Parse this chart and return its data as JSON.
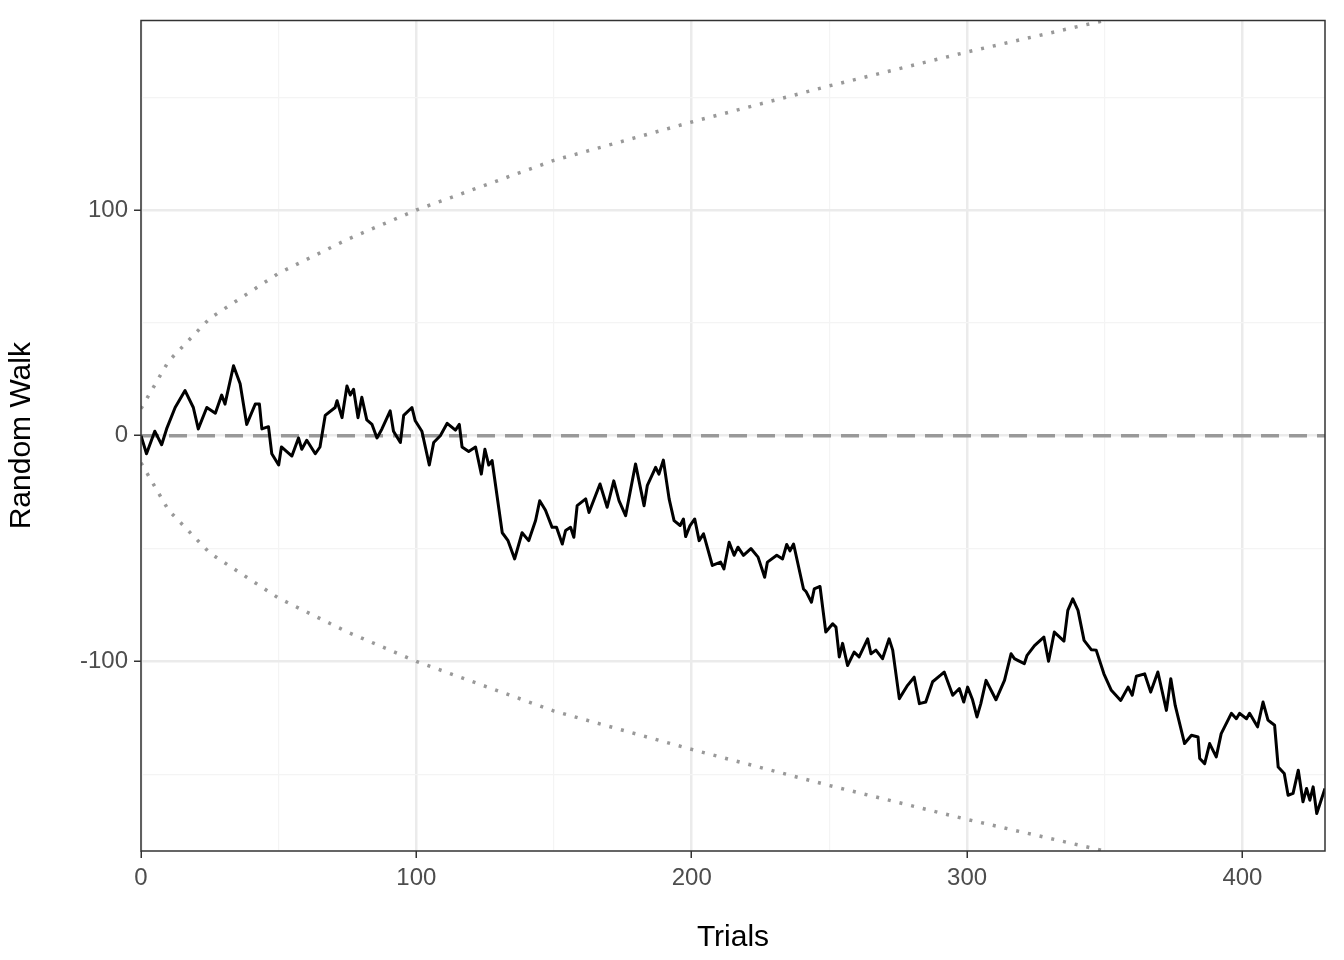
{
  "chart_data": {
    "type": "line",
    "xlabel": "Trials",
    "ylabel": "Random Walk",
    "xlim": [
      0,
      430
    ],
    "ylim": [
      -184,
      184
    ],
    "xticks": [
      0,
      {
        "value": 50,
        "label": null
      },
      100,
      {
        "value": 150,
        "label": null
      },
      200,
      {
        "value": 250,
        "label": null
      },
      300,
      {
        "value": 350,
        "label": null
      },
      400
    ],
    "yticks": [
      {
        "value": -150,
        "label": null
      },
      -100,
      {
        "value": -50,
        "label": null
      },
      0,
      {
        "value": 50,
        "label": null
      },
      100,
      {
        "value": 150,
        "label": null
      }
    ],
    "grid": true,
    "marker": "none",
    "ref_lines": [
      {
        "axis": "y",
        "value": 0,
        "color": "#999999",
        "line_style": "dashed"
      }
    ],
    "series": [
      {
        "type": "line",
        "color": "#000000",
        "line_style": "solid",
        "x": [
          0,
          2,
          5,
          7.5,
          9.3,
          12.4,
          16,
          19,
          20.8,
          23.9,
          27,
          29.3,
          30.5,
          33.6,
          36,
          38.4,
          41.5,
          43,
          43.9,
          46.3,
          47.5,
          50,
          51,
          54.8,
          57.2,
          58.4,
          60.2,
          63.3,
          65,
          66.9,
          70.5,
          71.2,
          73,
          74.8,
          76,
          77.2,
          78.8,
          80.2,
          82,
          83.9,
          85.7,
          87.5,
          90.5,
          91.7,
          94.2,
          95.4,
          98.4,
          99.6,
          102,
          104.7,
          106.3,
          108.7,
          111.2,
          114.2,
          115.6,
          116.6,
          119,
          121.5,
          123.6,
          124.9,
          126.3,
          127.5,
          131.2,
          133.3,
          135.7,
          138.4,
          140.8,
          143.3,
          144.8,
          146.9,
          149.3,
          150.9,
          153,
          154.2,
          156,
          157.2,
          158.4,
          161.5,
          162.7,
          166.7,
          169.3,
          171.7,
          173.6,
          176,
          179.6,
          182.7,
          183.9,
          186.9,
          188.1,
          189.7,
          191.8,
          193.6,
          195.8,
          197,
          197.8,
          199.4,
          201.1,
          202.7,
          204.3,
          207.5,
          210.5,
          211.7,
          213.6,
          215.4,
          216.8,
          218.8,
          221.5,
          224.1,
          226.5,
          227.5,
          230.9,
          233,
          234.5,
          235.7,
          237,
          240.6,
          241.5,
          243.5,
          244.5,
          246.6,
          248.7,
          251.2,
          252.4,
          253.6,
          254.8,
          256.6,
          259,
          260.8,
          263.9,
          265.1,
          266.9,
          269.3,
          271.7,
          273,
          275.4,
          278.4,
          280.8,
          282.7,
          285,
          287.5,
          290.5,
          291.7,
          294.8,
          297.2,
          298.8,
          300.2,
          302,
          303.6,
          305,
          306.9,
          310.5,
          313.6,
          316,
          317.2,
          320.8,
          321.8,
          324.5,
          327.9,
          329.6,
          331.7,
          335.2,
          336.6,
          338.4,
          340.3,
          342.5,
          345.1,
          346.9,
          349.7,
          352.4,
          355.8,
          358.5,
          360,
          361.5,
          364.5,
          366.7,
          369.3,
          372.4,
          374,
          375.6,
          379,
          381.5,
          383.9,
          384.5,
          386.3,
          388.1,
          390.5,
          392.3,
          396,
          397.8,
          399,
          401.5,
          402.6,
          405.5,
          407.5,
          409.3,
          411.7,
          413,
          415.2,
          416.6,
          418.4,
          420.3,
          422,
          423.3,
          424.5,
          425.7,
          427,
          430
        ],
        "values": [
          0,
          -8,
          2,
          -4,
          3,
          12.5,
          20,
          12.5,
          3,
          12.5,
          10,
          18,
          14,
          31,
          23,
          5,
          14,
          14,
          3,
          4,
          -8,
          -13,
          -5,
          -9,
          -1,
          -6,
          -2,
          -8,
          -5,
          9,
          12.5,
          15.5,
          8,
          22,
          18,
          20.6,
          8,
          17,
          7,
          5,
          -1,
          3,
          11,
          2,
          -3,
          9,
          12.5,
          6.6,
          2,
          -13,
          -3,
          0,
          5.5,
          2.5,
          5,
          -5,
          -7,
          -5,
          -17,
          -6,
          -13,
          -11,
          -43,
          -46.5,
          -54.6,
          -43,
          -46.5,
          -37.6,
          -28.8,
          -33,
          -40.6,
          -40.6,
          -48,
          -42,
          -40.6,
          -45,
          -31,
          -28,
          -34,
          -21.4,
          -31.7,
          -20,
          -28.8,
          -35.4,
          -12.5,
          -31,
          -22,
          -14,
          -17,
          -10.8,
          -28,
          -37.6,
          -39.8,
          -36.9,
          -44.7,
          -39.8,
          -36.9,
          -46.5,
          -43.5,
          -57.5,
          -56,
          -59,
          -47.2,
          -53,
          -49.4,
          -53,
          -50,
          -53.8,
          -62.7,
          -56,
          -53,
          -54.6,
          -48.2,
          -51,
          -48,
          -67.9,
          -69,
          -73.8,
          -67.9,
          -66.8,
          -87,
          -83.3,
          -84.8,
          -98,
          -92,
          -101.8,
          -95.9,
          -98,
          -90,
          -96.6,
          -95,
          -98.8,
          -90,
          -95,
          -116.5,
          -110.6,
          -107,
          -118.7,
          -118,
          -109,
          -106,
          -104.7,
          -115,
          -112,
          -118,
          -111.4,
          -117,
          -124.6,
          -118.7,
          -108.4,
          -117,
          -108.4,
          -96.6,
          -98.8,
          -101,
          -97.3,
          -93,
          -89.2,
          -99.9,
          -87,
          -91,
          -77.4,
          -72.3,
          -77.4,
          -90.7,
          -94.8,
          -95,
          -105.5,
          -112.8,
          -117.3,
          -111.4,
          -115,
          -106.6,
          -105.5,
          -113.6,
          -104.7,
          -121.7,
          -107.7,
          -119.5,
          -136.4,
          -132.7,
          -133.5,
          -143,
          -145.3,
          -136.4,
          -142.3,
          -132,
          -123,
          -125.4,
          -123,
          -125.4,
          -123,
          -129,
          -118,
          -126,
          -128.3,
          -146.8,
          -149.7,
          -159.3,
          -158.5,
          -148.2,
          -162.2,
          -156.3,
          -161.5,
          -155.6,
          -167.4,
          -156.3
        ]
      },
      {
        "type": "line",
        "color": "#999999",
        "line_style": "dotted",
        "x": [
          0,
          10,
          25,
          50,
          75,
          100,
          150,
          200,
          250,
          300,
          350
        ],
        "values": [
          12,
          33,
          52,
          72,
          87,
          100,
          122,
          139,
          155,
          170,
          184
        ]
      },
      {
        "type": "line",
        "color": "#999999",
        "line_style": "dotted",
        "x": [
          0,
          10,
          25,
          50,
          75,
          100,
          150,
          200,
          250,
          300,
          350
        ],
        "values": [
          -12,
          -33,
          -52,
          -72,
          -87,
          -100,
          -122,
          -139,
          -155,
          -170,
          -184
        ]
      }
    ]
  }
}
